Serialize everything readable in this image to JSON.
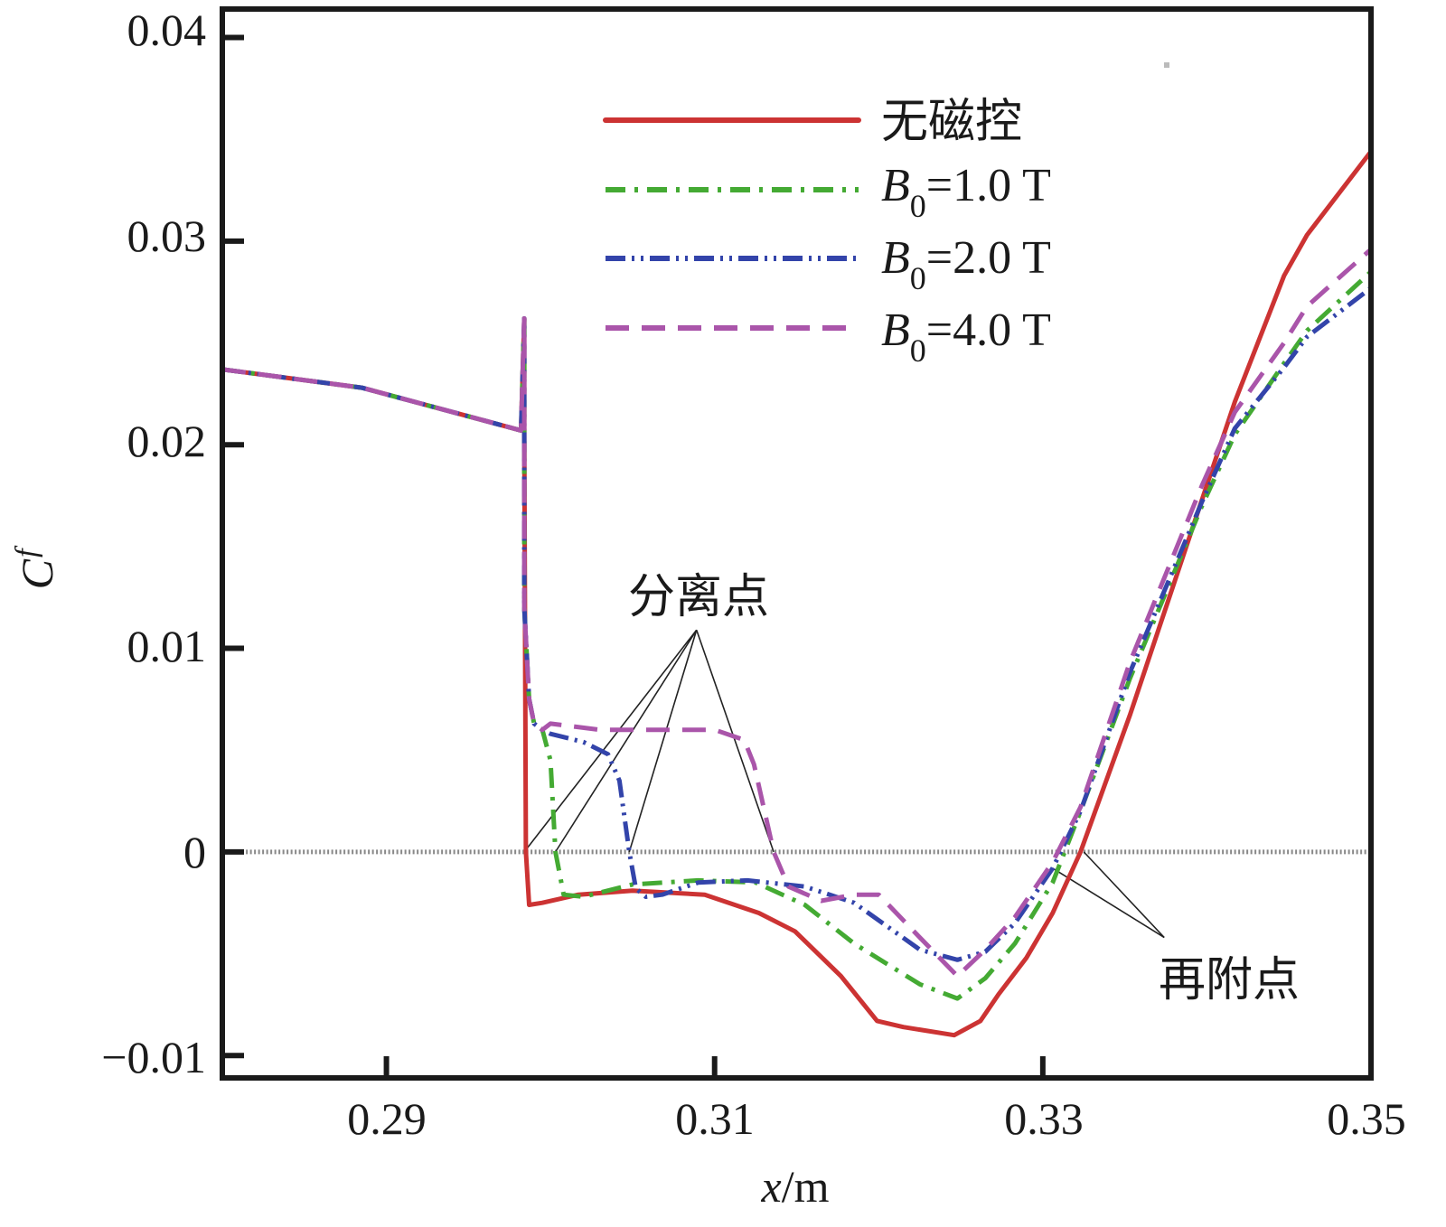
{
  "chart_data": {
    "type": "line",
    "title": "",
    "xlabel": "x/m",
    "xlabel_parts": {
      "var": "x",
      "unit": "/m"
    },
    "ylabel": "Cf",
    "ylabel_parts": {
      "main": "C",
      "sub": "f"
    },
    "xlim": [
      0.28,
      0.35
    ],
    "ylim": [
      -0.0111,
      0.0414
    ],
    "xticks": [
      0.29,
      0.31,
      0.33,
      0.35
    ],
    "xtick_labels": [
      "0.29",
      "0.31",
      "0.33",
      "0.35"
    ],
    "yticks": [
      0.04,
      0.03,
      0.02,
      0.01,
      0,
      -0.01
    ],
    "ytick_labels": [
      "0.04",
      "0.03",
      "0.02",
      "0.01",
      "0",
      "−0.01"
    ],
    "grid": false,
    "legend_position": "top-center",
    "reference_line": {
      "y": 0,
      "style": "dotted",
      "color": "#888888",
      "x_start": 0.2802
    },
    "series": [
      {
        "name": "无磁控",
        "label_parts": {
          "text": "无磁控"
        },
        "color": "#cc3333",
        "dash": "solid",
        "x": [
          0.28,
          0.2885,
          0.2982,
          0.2984,
          0.2984,
          0.2985,
          0.2987,
          0.2995,
          0.3017,
          0.305,
          0.3094,
          0.3127,
          0.3149,
          0.3177,
          0.3199,
          0.3215,
          0.3246,
          0.3262,
          0.3273,
          0.329,
          0.3306,
          0.3323,
          0.3353,
          0.3397,
          0.3417,
          0.3447,
          0.3461,
          0.35
        ],
        "y": [
          0.0237,
          0.0228,
          0.0207,
          0.0262,
          0.0208,
          0.0,
          -0.0026,
          -0.0025,
          -0.0021,
          -0.0019,
          -0.0021,
          -0.003,
          -0.0039,
          -0.0061,
          -0.0083,
          -0.0086,
          -0.009,
          -0.0083,
          -0.007,
          -0.0052,
          -0.003,
          0.0,
          0.0067,
          0.0173,
          0.0221,
          0.0283,
          0.0303,
          0.0344
        ]
      },
      {
        "name": "B0=1.0 T",
        "label_parts": {
          "B": "B",
          "sub": "0",
          "rest": "=1.0 T"
        },
        "color": "#44aa33",
        "dash": "dashdot",
        "x": [
          0.28,
          0.2885,
          0.2982,
          0.2984,
          0.2984,
          0.2987,
          0.299,
          0.2995,
          0.3,
          0.3003,
          0.3008,
          0.302,
          0.305,
          0.309,
          0.3125,
          0.3155,
          0.3185,
          0.3225,
          0.3248,
          0.3265,
          0.3283,
          0.3306,
          0.3323,
          0.3353,
          0.3397,
          0.3417,
          0.3447,
          0.3461,
          0.35
        ],
        "y": [
          0.0237,
          0.0228,
          0.0207,
          0.0262,
          0.012,
          0.0075,
          0.0063,
          0.006,
          0.0045,
          0.0,
          -0.0021,
          -0.0022,
          -0.0016,
          -0.0014,
          -0.0015,
          -0.0026,
          -0.0045,
          -0.0065,
          -0.0072,
          -0.0062,
          -0.0045,
          -0.0015,
          0.002,
          0.0085,
          0.017,
          0.0205,
          0.024,
          0.0256,
          0.0285
        ]
      },
      {
        "name": "B0=2.0 T",
        "label_parts": {
          "B": "B",
          "sub": "0",
          "rest": "=2.0 T"
        },
        "color": "#3344aa",
        "dash": "dashdotdot",
        "x": [
          0.28,
          0.2885,
          0.2982,
          0.2984,
          0.2984,
          0.2987,
          0.299,
          0.2995,
          0.3,
          0.302,
          0.3035,
          0.3042,
          0.3048,
          0.3052,
          0.3058,
          0.3068,
          0.309,
          0.312,
          0.3155,
          0.3185,
          0.3225,
          0.3248,
          0.3265,
          0.3283,
          0.3306,
          0.3323,
          0.3353,
          0.3397,
          0.3417,
          0.3447,
          0.3461,
          0.35
        ],
        "y": [
          0.0237,
          0.0228,
          0.0207,
          0.0262,
          0.012,
          0.0075,
          0.0063,
          0.006,
          0.0058,
          0.0054,
          0.0048,
          0.0035,
          0.0,
          -0.0018,
          -0.0022,
          -0.0021,
          -0.0015,
          -0.0014,
          -0.0017,
          -0.0025,
          -0.0048,
          -0.0053,
          -0.0049,
          -0.0035,
          -0.0008,
          0.002,
          0.0088,
          0.0172,
          0.0208,
          0.0238,
          0.0253,
          0.0277
        ]
      },
      {
        "name": "B0=4.0 T",
        "label_parts": {
          "B": "B",
          "sub": "0",
          "rest": "=4.0 T"
        },
        "color": "#aa55aa",
        "dash": "dashed",
        "x": [
          0.28,
          0.2885,
          0.2982,
          0.2984,
          0.2984,
          0.2987,
          0.299,
          0.2995,
          0.3,
          0.303,
          0.306,
          0.31,
          0.3118,
          0.3124,
          0.3136,
          0.3145,
          0.3165,
          0.3185,
          0.32,
          0.3225,
          0.3248,
          0.3265,
          0.3283,
          0.3306,
          0.3323,
          0.3353,
          0.3397,
          0.3417,
          0.3447,
          0.3461,
          0.35
        ],
        "y": [
          0.0237,
          0.0228,
          0.0207,
          0.0262,
          0.012,
          0.0075,
          0.0063,
          0.006,
          0.0063,
          0.006,
          0.006,
          0.006,
          0.0055,
          0.0043,
          0.0,
          -0.0017,
          -0.0024,
          -0.0021,
          -0.0021,
          -0.0042,
          -0.0061,
          -0.0048,
          -0.0032,
          -0.0005,
          0.0022,
          0.0093,
          0.018,
          0.0216,
          0.025,
          0.0268,
          0.0296
        ]
      }
    ],
    "annotations": [
      {
        "text": "分离点",
        "points_to": [
          [
            0.2984,
            0.0
          ],
          [
            0.3003,
            0.0
          ],
          [
            0.3048,
            0.0
          ],
          [
            0.3136,
            0.0
          ]
        ],
        "label_anchor": [
          0.3089,
          0.0109
        ]
      },
      {
        "text": "再附点",
        "points_to": [
          [
            0.3306,
            -0.0008
          ],
          [
            0.3325,
            0.0
          ]
        ],
        "label_anchor": [
          0.3374,
          -0.0042
        ]
      }
    ]
  }
}
